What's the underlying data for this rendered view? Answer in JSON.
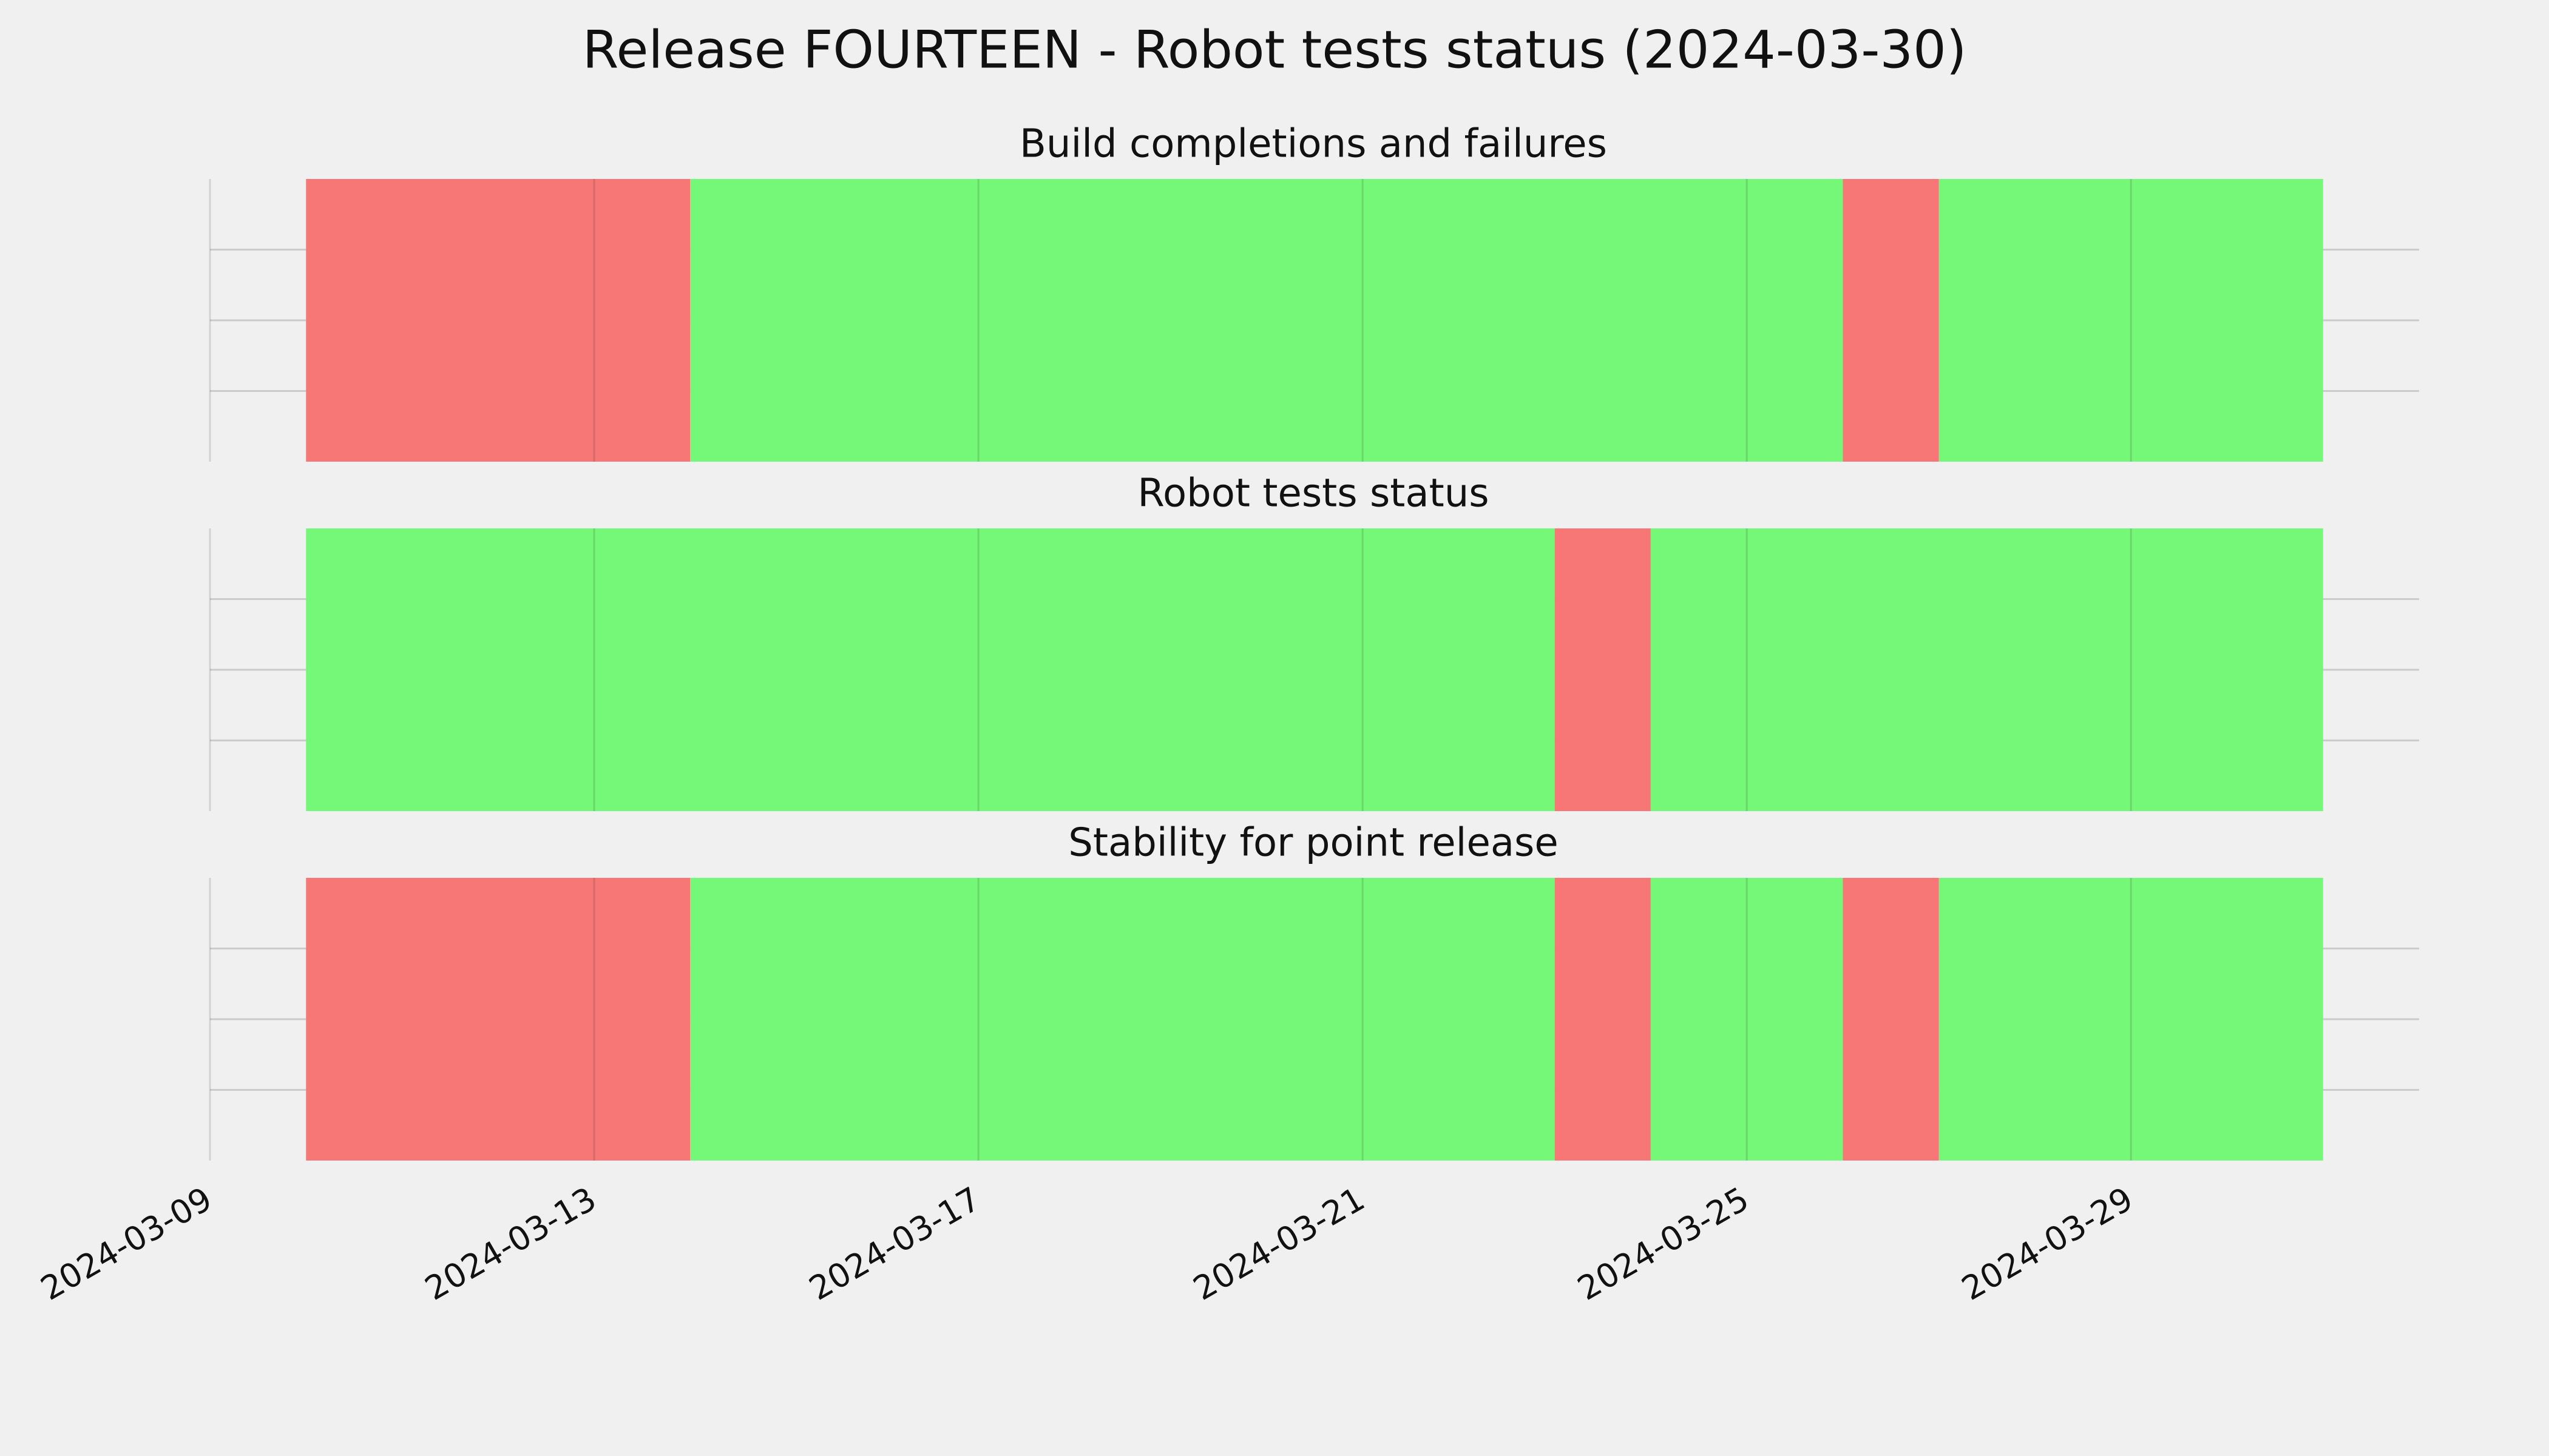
{
  "chart_data": {
    "type": "timeline",
    "title": "Release FOURTEEN - Robot tests status (2024-03-30)",
    "xlim": [
      "2024-03-09",
      "2024-04-01"
    ],
    "xticks": [
      "2024-03-09",
      "2024-03-13",
      "2024-03-17",
      "2024-03-21",
      "2024-03-25",
      "2024-03-29"
    ],
    "ylim": [
      0,
      1
    ],
    "yticks": [
      0.25,
      0.5,
      0.75
    ],
    "grid": true,
    "panels": [
      {
        "title": "Build completions and failures",
        "segments": [
          {
            "start": "2024-03-10",
            "end": "2024-03-14",
            "color": "#f77777"
          },
          {
            "start": "2024-03-14",
            "end": "2024-03-26",
            "color": "#75f777"
          },
          {
            "start": "2024-03-26",
            "end": "2024-03-27",
            "color": "#f77777"
          },
          {
            "start": "2024-03-27",
            "end": "2024-03-31",
            "color": "#75f777"
          }
        ]
      },
      {
        "title": "Robot tests status",
        "segments": [
          {
            "start": "2024-03-10",
            "end": "2024-03-23",
            "color": "#75f777"
          },
          {
            "start": "2024-03-23",
            "end": "2024-03-24",
            "color": "#f77777"
          },
          {
            "start": "2024-03-24",
            "end": "2024-03-31",
            "color": "#75f777"
          }
        ]
      },
      {
        "title": "Stability for point release",
        "segments": [
          {
            "start": "2024-03-10",
            "end": "2024-03-14",
            "color": "#f77777"
          },
          {
            "start": "2024-03-14",
            "end": "2024-03-23",
            "color": "#75f777"
          },
          {
            "start": "2024-03-23",
            "end": "2024-03-24",
            "color": "#f77777"
          },
          {
            "start": "2024-03-24",
            "end": "2024-03-26",
            "color": "#75f777"
          },
          {
            "start": "2024-03-26",
            "end": "2024-03-27",
            "color": "#f77777"
          },
          {
            "start": "2024-03-27",
            "end": "2024-03-31",
            "color": "#75f777"
          }
        ]
      }
    ]
  }
}
